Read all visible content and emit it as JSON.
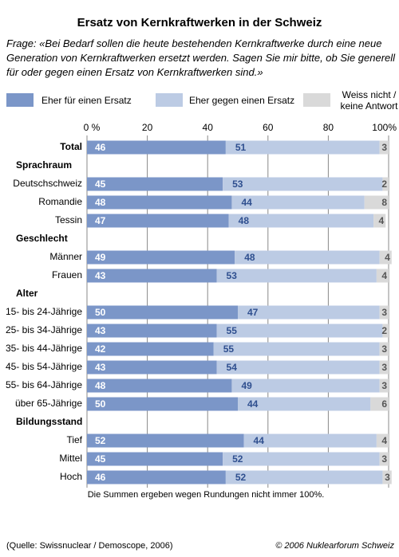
{
  "chart_data": {
    "type": "stacked-bar-horizontal",
    "title": "Ersatz von Kernkraftwerken in der Schweiz",
    "subtitle": "Frage: «Bei Bedarf sollen die heute bestehenden Kernkraftwerke durch eine neue Generation von Kernkraftwerken ersetzt werden. Sagen Sie mir bitte, ob Sie generell für oder gegen einen Ersatz von Kernkraftwerken sind.»",
    "categories": [
      "Total",
      "Sprachraum",
      "Deutschschweiz",
      "Romandie",
      "Tessin",
      "Geschlecht",
      "Männer",
      "Frauen",
      "Alter",
      "15- bis 24-Jährige",
      "25- bis 34-Jährige",
      "35- bis 44-Jährige",
      "45- bis 54-Jährige",
      "55- bis 64-Jährige",
      "über 65-Jährige",
      "Bildungsstand",
      "Tief",
      "Mittel",
      "Hoch"
    ],
    "bold": [
      true,
      true,
      false,
      false,
      false,
      true,
      false,
      false,
      true,
      false,
      false,
      false,
      false,
      false,
      false,
      true,
      false,
      false,
      false
    ],
    "series": [
      {
        "name": "Eher für einen Ersatz",
        "color": "#7b96c8",
        "values": [
          46,
          null,
          45,
          48,
          47,
          null,
          49,
          43,
          null,
          50,
          43,
          42,
          43,
          48,
          50,
          null,
          52,
          45,
          46
        ]
      },
      {
        "name": "Eher gegen einen Ersatz",
        "color": "#bccbe4",
        "values": [
          51,
          null,
          53,
          44,
          48,
          null,
          48,
          53,
          null,
          47,
          55,
          55,
          54,
          49,
          44,
          null,
          44,
          52,
          52
        ]
      },
      {
        "name": "Weiss nicht / keine Antwort",
        "color": "#d9d9d9",
        "values": [
          3,
          null,
          2,
          8,
          4,
          null,
          4,
          4,
          null,
          3,
          2,
          3,
          3,
          3,
          6,
          null,
          4,
          3,
          3
        ]
      }
    ],
    "xlim": [
      0,
      100
    ],
    "xticks": [
      {
        "value": 0,
        "label": "0 %"
      },
      20,
      40,
      60,
      80,
      {
        "value": 100,
        "label": "100%"
      }
    ],
    "grid": true,
    "note": "Die Summen ergeben wegen Rundungen nicht immer 100%.",
    "source": "(Quelle: Swissnuclear / Demoscope, 2006)",
    "copyright": "© 2006 Nuklearforum Schweiz"
  }
}
